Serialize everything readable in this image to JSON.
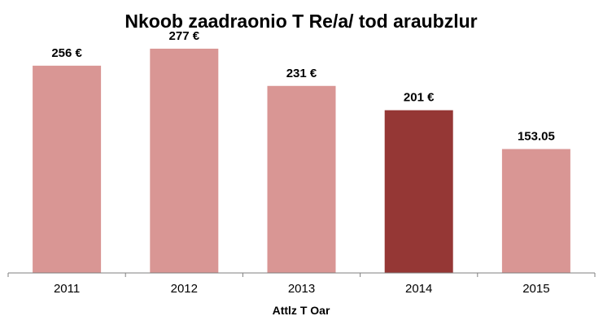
{
  "chart_data": {
    "type": "bar",
    "title": "Nkoob zaadraonio T Re/a/ tod araubzlur",
    "xlabel": "Attlz T Oar",
    "ylabel": "",
    "categories": [
      "2011",
      "2012",
      "2013",
      "2014",
      "2015"
    ],
    "values": [
      256,
      277,
      231,
      201,
      153.05
    ],
    "data_labels": [
      "256 €",
      "277 €",
      "231 €",
      "201 €",
      "153.05"
    ],
    "ylim": [
      0,
      300
    ],
    "grid": false,
    "legend": "none",
    "colors": {
      "bar": "#d99694",
      "highlight": "#953735",
      "axis": "#7f7f7f"
    },
    "highlight_index": 3
  }
}
